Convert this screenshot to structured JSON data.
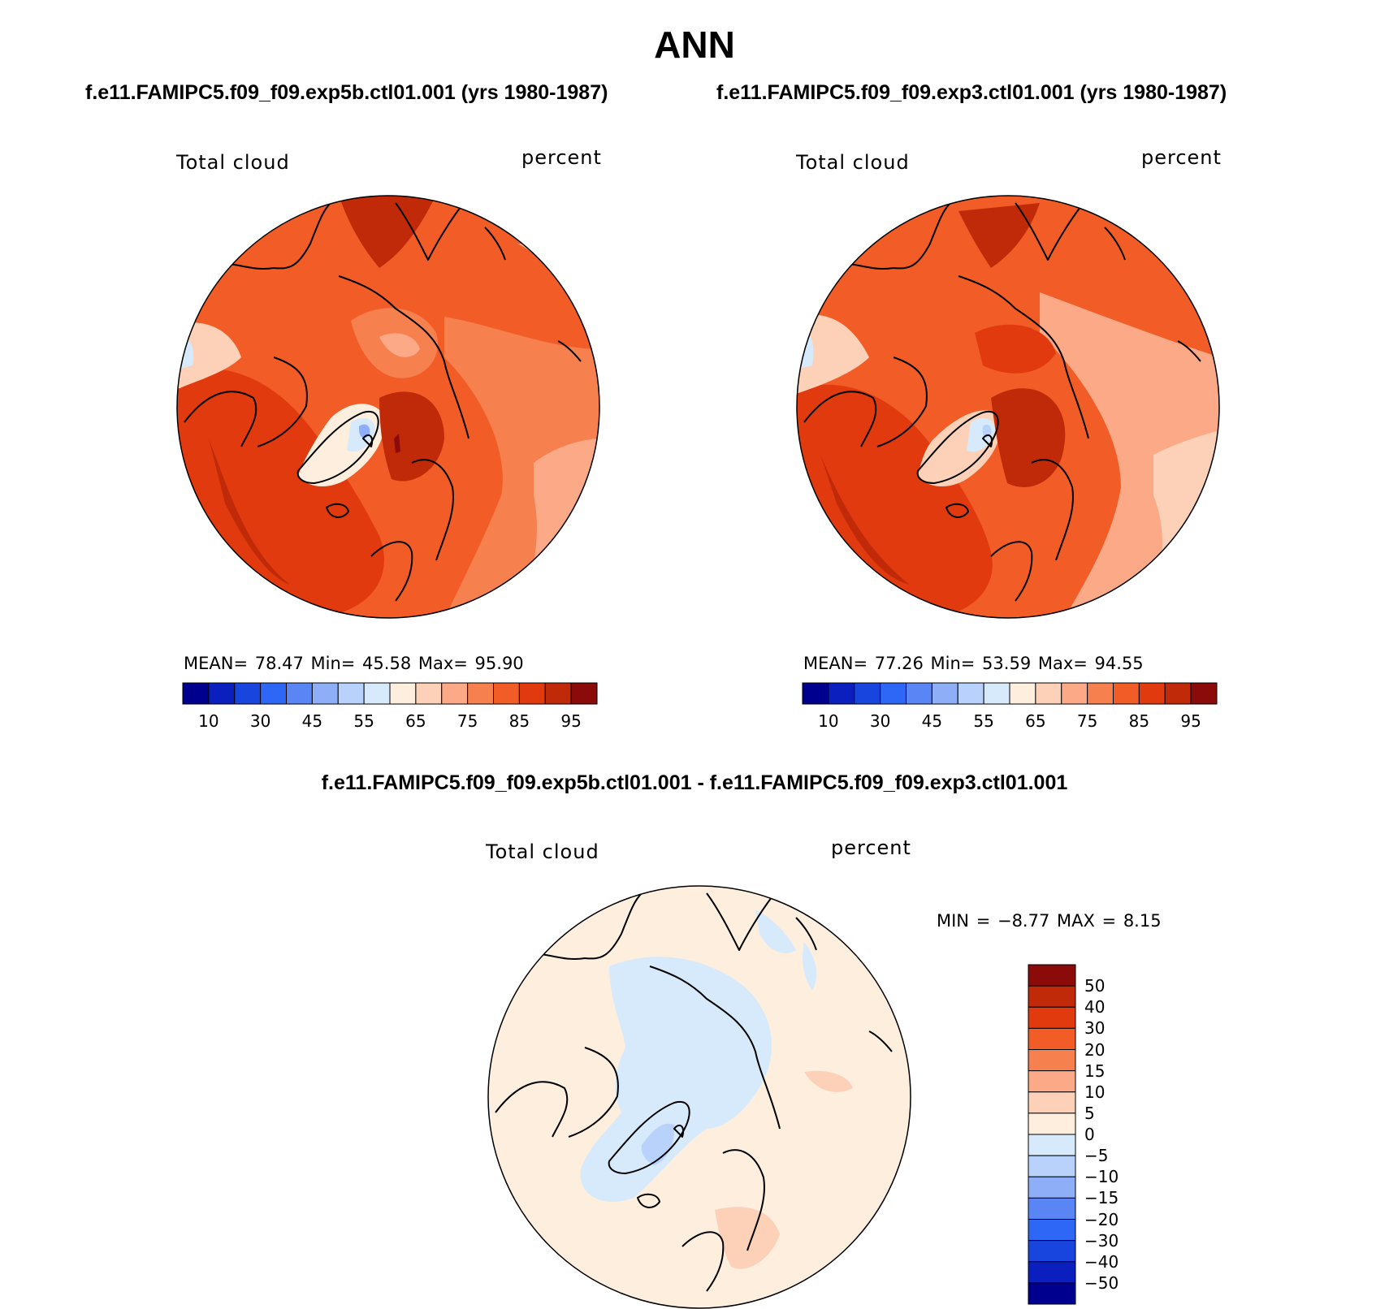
{
  "figure": {
    "title": "ANN",
    "diff_title": "f.e11.FAMIPC5.f09_f09.exp5b.ctl01.001 - f.e11.FAMIPC5.f09_f09.exp3.ctl01.001"
  },
  "panels": [
    {
      "case": "f.e11.FAMIPC5.f09_f09.exp5b.ctl01.001 (yrs 1980-1987)",
      "variable": "Total cloud",
      "units": "percent",
      "stats": "MEAN=   78.47   Min=   45.58   Max=   95.90"
    },
    {
      "case": "f.e11.FAMIPC5.f09_f09.exp3.ctl01.001 (yrs 1980-1987)",
      "variable": "Total cloud",
      "units": "percent",
      "stats": "MEAN=   77.26   Min=   53.59   Max=   94.55"
    },
    {
      "variable": "Total cloud",
      "units": "percent",
      "stats": "MIN =   −8.77  MAX =    8.15"
    }
  ],
  "colorbar_main": {
    "colors": [
      "#00008f",
      "#0a1fbd",
      "#1745de",
      "#2e66f5",
      "#5a86f5",
      "#8eaff7",
      "#b9d2fb",
      "#d7eafc",
      "#feeede",
      "#fdd1b8",
      "#fba987",
      "#f7804f",
      "#f25d27",
      "#e23a0f",
      "#c02a08",
      "#8b0a0a"
    ],
    "labels": [
      "10",
      "30",
      "45",
      "55",
      "65",
      "75",
      "85",
      "95"
    ]
  },
  "colorbar_diff": {
    "colors": [
      "#8b0a0a",
      "#c02a08",
      "#e23a0f",
      "#f25d27",
      "#f7804f",
      "#fba987",
      "#fdd1b8",
      "#feeede",
      "#d7eafc",
      "#b9d2fb",
      "#8eaff7",
      "#5a86f5",
      "#2e66f5",
      "#1745de",
      "#0a1fbd",
      "#00008f"
    ],
    "labels": [
      "50",
      "40",
      "30",
      "20",
      "15",
      "10",
      "5",
      "0",
      "−5",
      "−10",
      "−15",
      "−20",
      "−30",
      "−40",
      "−50"
    ]
  },
  "map_colors": {
    "base_a": "#f25d27",
    "base_b": "#f25d27",
    "base_diff": "#feeede",
    "red_dark": "#c02a08",
    "red_mid": "#e23a0f",
    "orange": "#f7804f",
    "salmon": "#fba987",
    "peach": "#fdd1b8",
    "cream": "#feeede",
    "lightblue": "#d7eafc",
    "blue1": "#b9d2fb",
    "blue2": "#8eaff7",
    "maroon": "#8b0a0a"
  }
}
